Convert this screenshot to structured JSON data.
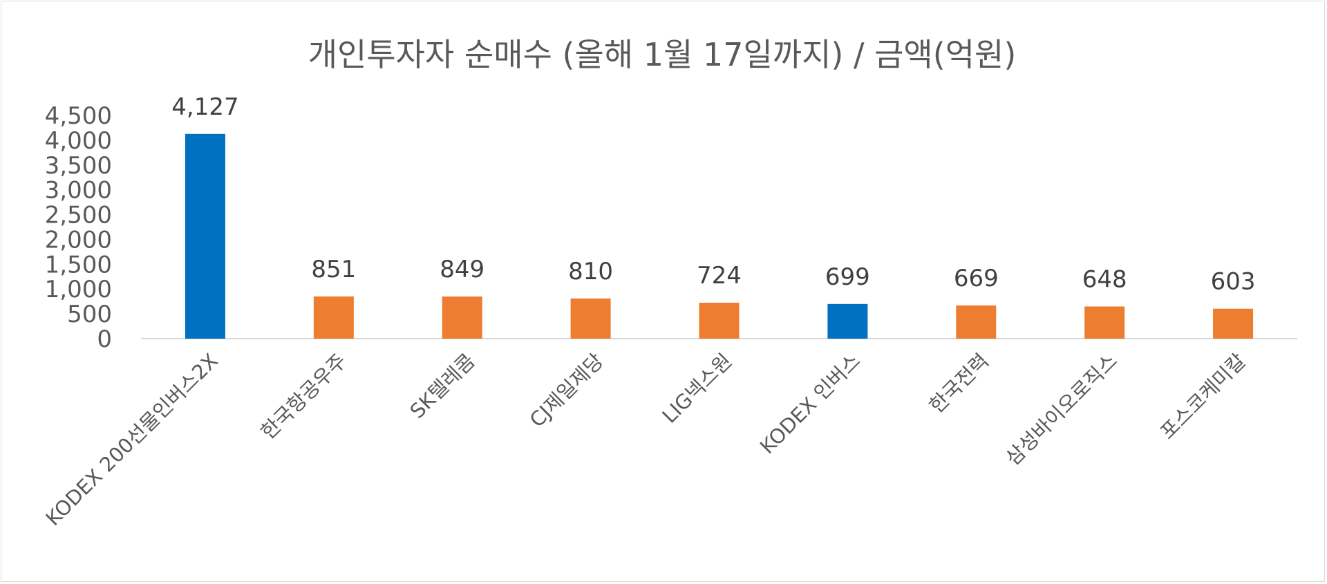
{
  "chart_data": {
    "type": "bar",
    "title": "개인투자자 순매수 (올해 1월 17일까지) / 금액(억원)",
    "xlabel": "",
    "ylabel": "",
    "ylim": [
      0,
      4500
    ],
    "yticks": [
      0,
      500,
      1000,
      1500,
      2000,
      2500,
      3000,
      3500,
      4000,
      4500
    ],
    "ytick_labels": [
      "0",
      "500",
      "1,000",
      "1,500",
      "2,000",
      "2,500",
      "3,000",
      "3,500",
      "4,000",
      "4,500"
    ],
    "categories": [
      "KODEX 200선물인버스2X",
      "한국항공우주",
      "SK텔레콤",
      "CJ제일제당",
      "LIG넥스원",
      "KODEX 인버스",
      "한국전력",
      "삼성바이오로직스",
      "포스코케미칼"
    ],
    "values": [
      4127,
      851,
      849,
      810,
      724,
      699,
      669,
      648,
      603
    ],
    "data_labels": [
      "4,127",
      "851",
      "849",
      "810",
      "724",
      "699",
      "669",
      "648",
      "603"
    ],
    "bar_colors": [
      "#0070C0",
      "#ED7D31",
      "#ED7D31",
      "#ED7D31",
      "#ED7D31",
      "#0070C0",
      "#ED7D31",
      "#ED7D31",
      "#ED7D31"
    ],
    "grid": false,
    "legend": "none"
  }
}
